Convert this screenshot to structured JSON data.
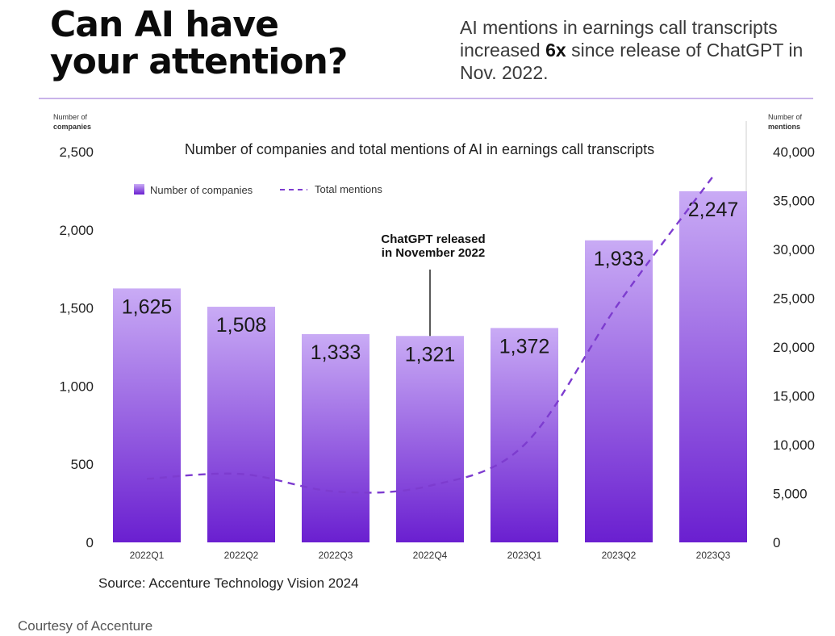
{
  "header": {
    "headline_line1": "Can AI have",
    "headline_line2": "your attention?",
    "sub_pre": "AI mentions in earnings call transcripts increased ",
    "sub_bold": "6x",
    "sub_post": " since release of ChatGPT in Nov. 2022."
  },
  "footer": {
    "source": "Source: Accenture Technology Vision 2024",
    "courtesy": "Courtesy of Accenture"
  },
  "chart_data": {
    "type": "bar",
    "title": "Number of companies and total mentions of AI in earnings call transcripts",
    "categories": [
      "2022Q1",
      "2022Q2",
      "2022Q3",
      "2022Q4",
      "2023Q1",
      "2023Q2",
      "2023Q3"
    ],
    "series": [
      {
        "name": "Number of companies",
        "type": "bar",
        "axis": "left",
        "values": [
          1625,
          1508,
          1333,
          1321,
          1372,
          1933,
          2247
        ],
        "labels": [
          "1,625",
          "1,508",
          "1,333",
          "1,321",
          "1,372",
          "1,933",
          "2,247"
        ]
      },
      {
        "name": "Total mentions",
        "type": "line",
        "style": "dashed",
        "axis": "right",
        "values": [
          6500,
          7000,
          5200,
          5800,
          10000,
          24500,
          37500
        ]
      }
    ],
    "y_left": {
      "label_line1": "Number of",
      "label_line2": "companies",
      "ylim": [
        0,
        2500
      ],
      "ticks": [
        0,
        500,
        1000,
        1500,
        2000,
        2500
      ],
      "tick_labels": [
        "0",
        "500",
        "1,000",
        "1,500",
        "2,000",
        "2,500"
      ]
    },
    "y_right": {
      "label_line1": "Number of",
      "label_line2": "mentions",
      "ylim": [
        0,
        40000
      ],
      "ticks": [
        0,
        5000,
        10000,
        15000,
        20000,
        25000,
        30000,
        35000,
        40000
      ],
      "tick_labels": [
        "0",
        "5,000",
        "10,000",
        "15,000",
        "20,000",
        "25,000",
        "30,000",
        "35,000",
        "40,000"
      ]
    },
    "annotation": {
      "text_line1": "ChatGPT released",
      "text_line2": "in November 2022",
      "category": "2022Q4"
    },
    "legend": {
      "position": "top-left"
    },
    "grid": false,
    "colors": {
      "bar_top": "#c9abf5",
      "bar_bottom": "#6a1fd0",
      "line": "#7d3ccf",
      "rule": "#c9b3ea"
    }
  }
}
